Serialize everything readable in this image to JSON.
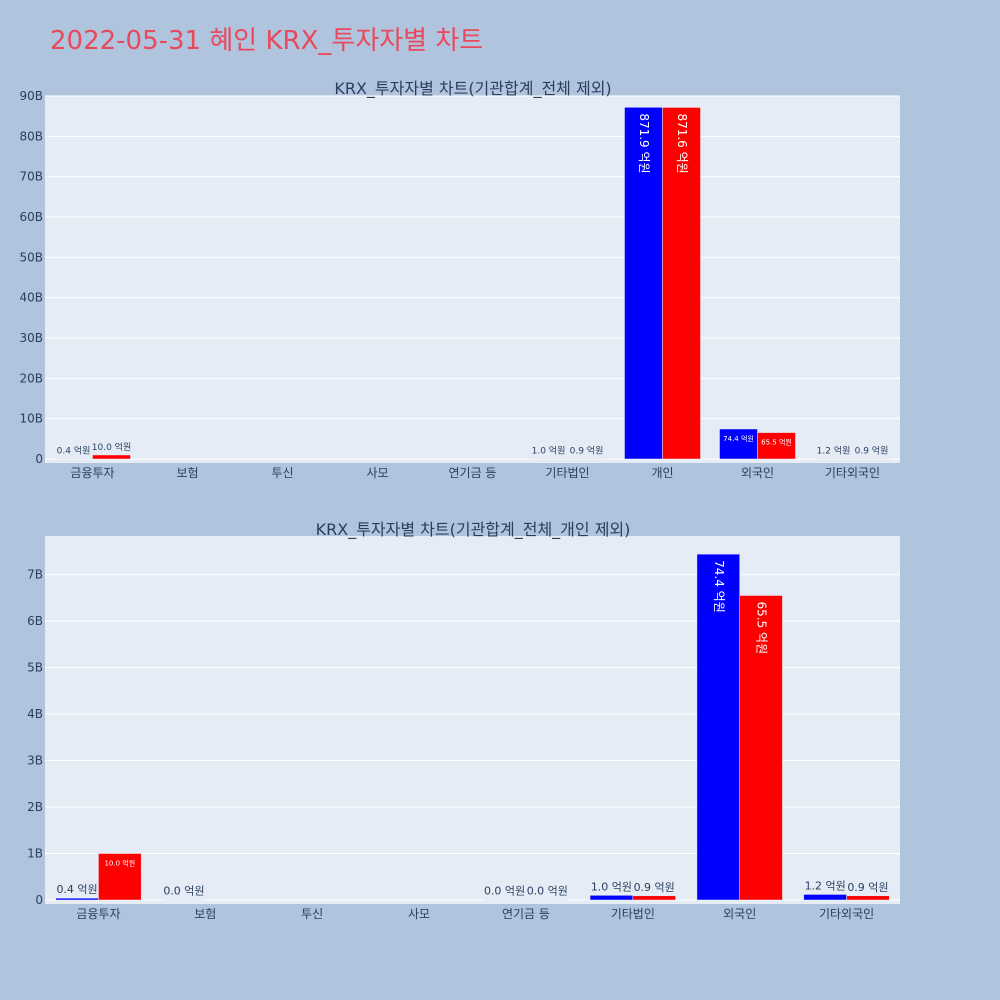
{
  "page": {
    "title": "2022-05-31 혜인 KRX_투자자별 차트",
    "background": "#b0c4de",
    "title_color": "#e8495c"
  },
  "chart_data": [
    {
      "type": "bar",
      "title": "KRX_투자자별 차트(기관합계_전체 제외)",
      "categories": [
        "금융투자",
        "보험",
        "투신",
        "사모",
        "연기금 등",
        "기타법인",
        "개인",
        "외국인",
        "기타외국인"
      ],
      "ylim": [
        0,
        90000000000
      ],
      "yticks": [
        0,
        10000000000,
        20000000000,
        30000000000,
        40000000000,
        50000000000,
        60000000000,
        70000000000,
        80000000000,
        90000000000
      ],
      "yticklabels": [
        "0",
        "10B",
        "20B",
        "30B",
        "40B",
        "50B",
        "60B",
        "70B",
        "80B",
        "90B"
      ],
      "grid": true,
      "barmode": "group",
      "plot_bg": "#e5ecf6",
      "series": [
        {
          "color": "#0000ff",
          "values": [
            40000000,
            null,
            null,
            null,
            null,
            100000000,
            87190000000,
            7440000000,
            120000000
          ],
          "labels": [
            "0.4 억원",
            "",
            "",
            "",
            "",
            "1.0 억원",
            "871.9 억원",
            "74.4 억원",
            "1.2 억원"
          ]
        },
        {
          "color": "#ff0000",
          "values": [
            1000000000,
            null,
            null,
            null,
            null,
            90000000,
            87160000000,
            6550000000,
            90000000
          ],
          "labels": [
            "10.0 억원",
            "",
            "",
            "",
            "",
            "0.9 억원",
            "871.6 억원",
            "65.5 억원",
            "0.9 억원"
          ]
        }
      ]
    },
    {
      "type": "bar",
      "title": "KRX_투자자별 차트(기관합계_전체_개인 제외)",
      "categories": [
        "금융투자",
        "보험",
        "투신",
        "사모",
        "연기금 등",
        "기타법인",
        "외국인",
        "기타외국인"
      ],
      "ylim": [
        0,
        7830000000
      ],
      "yticks": [
        0,
        1000000000,
        2000000000,
        3000000000,
        4000000000,
        5000000000,
        6000000000,
        7000000000
      ],
      "yticklabels": [
        "0",
        "1B",
        "2B",
        "3B",
        "4B",
        "5B",
        "6B",
        "7B"
      ],
      "grid": true,
      "barmode": "group",
      "plot_bg": "#e5ecf6",
      "series": [
        {
          "color": "#0000ff",
          "values": [
            40000000,
            0,
            null,
            null,
            0,
            100000000,
            7440000000,
            120000000
          ],
          "labels": [
            "0.4 억원",
            "0.0 억원",
            "",
            "",
            "0.0 억원",
            "1.0 억원",
            "74.4 억원",
            "1.2 억원"
          ]
        },
        {
          "color": "#ff0000",
          "values": [
            1000000000,
            null,
            null,
            null,
            0,
            90000000,
            6550000000,
            90000000
          ],
          "labels": [
            "10.0 억원",
            "",
            "",
            "",
            "0.0 억원",
            "0.9 억원",
            "65.5 억원",
            "0.9 억원"
          ]
        }
      ]
    }
  ]
}
